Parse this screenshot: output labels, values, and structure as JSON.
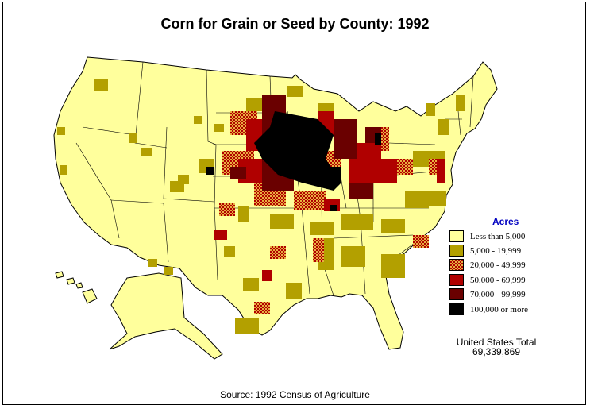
{
  "title": "Corn for Grain or Seed by County:  1992",
  "legend": {
    "title": "Acres",
    "items": [
      {
        "label": "Less than 5,000",
        "color": "#ffff9c"
      },
      {
        "label": "5,000 - 19,999",
        "color": "#b3a000"
      },
      {
        "label": "20,000 - 49,999",
        "color": "#e0a030",
        "pattern": "checker"
      },
      {
        "label": "50,000 - 69,999",
        "color": "#b00000"
      },
      {
        "label": "70,000 -  99,999",
        "color": "#6a0000"
      },
      {
        "label": "100,000 or more",
        "color": "#000000"
      }
    ]
  },
  "total": {
    "label": "United States Total",
    "value": "69,339,869"
  },
  "source": "Source:  1992 Census of Agriculture"
}
